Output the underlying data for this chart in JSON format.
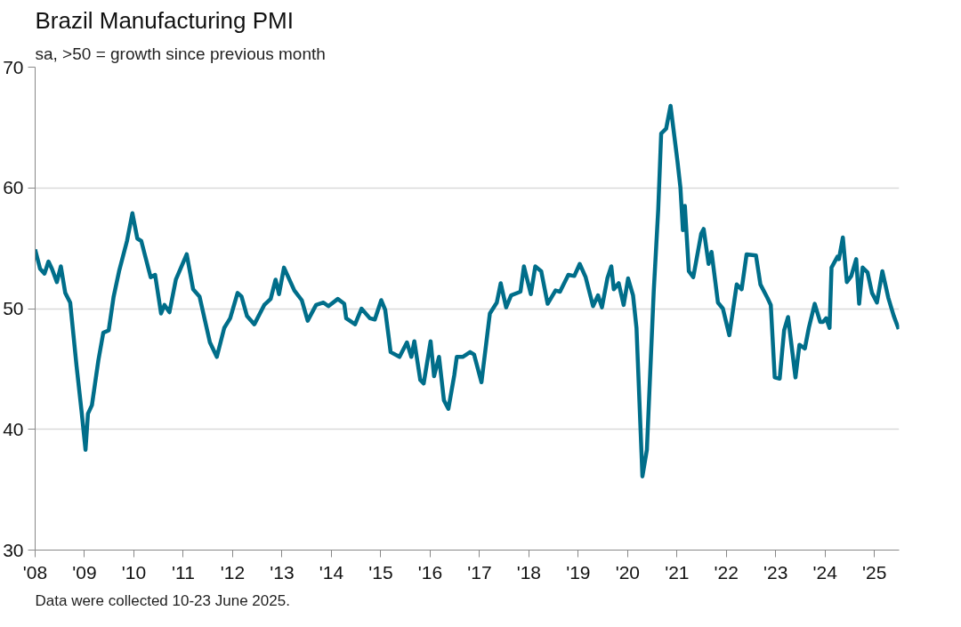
{
  "chart_data": {
    "type": "line",
    "title": "Brazil Manufacturing PMI",
    "subtitle": "sa, >50 = growth since previous month",
    "x": [
      2008.0,
      2008.1,
      2008.19,
      2008.27,
      2008.34,
      2008.44,
      2008.52,
      2008.61,
      2008.71,
      2008.84,
      2008.94,
      2009.02,
      2009.07,
      2009.15,
      2009.28,
      2009.38,
      2009.49,
      2009.59,
      2009.7,
      2009.86,
      2009.97,
      2010.07,
      2010.15,
      2010.34,
      2010.43,
      2010.55,
      2010.62,
      2010.72,
      2010.85,
      2011.07,
      2011.2,
      2011.33,
      2011.54,
      2011.68,
      2011.83,
      2011.95,
      2012.1,
      2012.18,
      2012.29,
      2012.44,
      2012.64,
      2012.77,
      2012.87,
      2012.94,
      2013.04,
      2013.25,
      2013.4,
      2013.52,
      2013.69,
      2013.84,
      2013.94,
      2014.13,
      2014.26,
      2014.3,
      2014.48,
      2014.61,
      2014.78,
      2014.88,
      2015.01,
      2015.09,
      2015.2,
      2015.38,
      2015.53,
      2015.62,
      2015.68,
      2015.8,
      2015.87,
      2016.01,
      2016.08,
      2016.18,
      2016.28,
      2016.37,
      2016.49,
      2016.54,
      2016.66,
      2016.81,
      2016.89,
      2017.04,
      2017.21,
      2017.35,
      2017.43,
      2017.54,
      2017.64,
      2017.83,
      2017.9,
      2018.04,
      2018.13,
      2018.25,
      2018.38,
      2018.54,
      2018.63,
      2018.8,
      2018.92,
      2019.03,
      2019.15,
      2019.3,
      2019.4,
      2019.48,
      2019.59,
      2019.67,
      2019.72,
      2019.82,
      2019.92,
      2020.01,
      2020.11,
      2020.18,
      2020.3,
      2020.39,
      2020.53,
      2020.62,
      2020.68,
      2020.78,
      2020.87,
      2021.01,
      2021.07,
      2021.12,
      2021.16,
      2021.24,
      2021.33,
      2021.49,
      2021.54,
      2021.64,
      2021.7,
      2021.83,
      2021.93,
      2022.06,
      2022.21,
      2022.31,
      2022.41,
      2022.6,
      2022.69,
      2022.83,
      2022.9,
      2022.98,
      2023.08,
      2023.17,
      2023.25,
      2023.4,
      2023.48,
      2023.59,
      2023.67,
      2023.79,
      2023.9,
      2023.96,
      2024.02,
      2024.09,
      2024.13,
      2024.25,
      2024.28,
      2024.36,
      2024.44,
      2024.53,
      2024.63,
      2024.69,
      2024.76,
      2024.86,
      2024.95,
      2025.05,
      2025.16,
      2025.28,
      2025.39,
      2025.49
    ],
    "series": [
      {
        "color": "#006e8a",
        "values": [
          54.9,
          53.3,
          52.9,
          53.9,
          53.3,
          52.2,
          53.5,
          51.3,
          50.5,
          45.2,
          41.5,
          38.3,
          41.3,
          42.0,
          45.7,
          48.0,
          48.2,
          51.0,
          53.1,
          55.6,
          57.9,
          55.8,
          55.6,
          52.6,
          52.8,
          49.6,
          50.3,
          49.7,
          52.4,
          54.5,
          51.6,
          51.0,
          47.2,
          46.0,
          48.4,
          49.2,
          51.3,
          51.0,
          49.4,
          48.7,
          50.3,
          50.8,
          52.4,
          51.2,
          53.4,
          51.5,
          50.7,
          49.0,
          50.3,
          50.5,
          50.2,
          50.8,
          50.4,
          49.2,
          48.7,
          50.0,
          49.2,
          49.1,
          50.7,
          49.9,
          46.4,
          46.0,
          47.2,
          46.0,
          47.3,
          44.1,
          43.8,
          47.3,
          44.4,
          46.0,
          42.4,
          41.7,
          44.5,
          46.0,
          46.0,
          46.4,
          46.2,
          43.9,
          49.6,
          50.5,
          52.1,
          50.1,
          51.1,
          51.4,
          53.5,
          51.2,
          53.5,
          53.1,
          50.4,
          51.5,
          51.4,
          52.8,
          52.7,
          53.7,
          52.6,
          50.2,
          51.1,
          50.1,
          52.5,
          53.5,
          51.6,
          52.1,
          50.3,
          52.5,
          51.1,
          48.4,
          36.1,
          38.3,
          51.5,
          58.2,
          64.5,
          64.9,
          66.8,
          62.2,
          60.0,
          56.5,
          58.5,
          53.1,
          52.6,
          56.2,
          56.6,
          53.7,
          54.7,
          50.5,
          50.0,
          47.8,
          52.0,
          51.6,
          54.5,
          54.4,
          52.0,
          50.9,
          50.3,
          44.3,
          44.2,
          48.2,
          49.3,
          44.3,
          47.0,
          46.7,
          48.4,
          50.4,
          48.9,
          48.9,
          49.2,
          48.4,
          53.4,
          54.3,
          54.1,
          55.9,
          52.2,
          52.7,
          54.1,
          50.4,
          53.4,
          53.0,
          51.3,
          50.5,
          53.1,
          50.9,
          49.4,
          48.3
        ]
      }
    ],
    "xlim": [
      2008,
      2025.5
    ],
    "xticks": [
      {
        "value": 2008,
        "label": "'08"
      },
      {
        "value": 2009,
        "label": "'09"
      },
      {
        "value": 2010,
        "label": "'10"
      },
      {
        "value": 2011,
        "label": "'11"
      },
      {
        "value": 2012,
        "label": "'12"
      },
      {
        "value": 2013,
        "label": "'13"
      },
      {
        "value": 2014,
        "label": "'14"
      },
      {
        "value": 2015,
        "label": "'15"
      },
      {
        "value": 2016,
        "label": "'16"
      },
      {
        "value": 2017,
        "label": "'17"
      },
      {
        "value": 2018,
        "label": "'18"
      },
      {
        "value": 2019,
        "label": "'19"
      },
      {
        "value": 2020,
        "label": "'20"
      },
      {
        "value": 2021,
        "label": "'21"
      },
      {
        "value": 2022,
        "label": "'22"
      },
      {
        "value": 2023,
        "label": "'23"
      },
      {
        "value": 2024,
        "label": "'24"
      },
      {
        "value": 2025,
        "label": "'25"
      }
    ],
    "ylim": [
      30,
      70
    ],
    "yticks": [
      30,
      40,
      50,
      60,
      70
    ],
    "grid": "y",
    "marker": "none",
    "line_style": "solid",
    "annotations": [
      "Data were collected 10-23 June 2025."
    ]
  }
}
